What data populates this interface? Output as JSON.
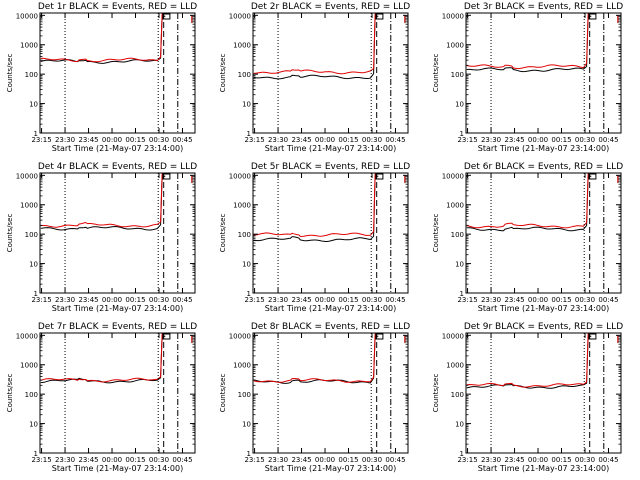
{
  "chart_data": [
    {
      "type": "line",
      "title": "Det 1r BLACK = Events, RED = LLD",
      "xlabel": "Start Time (21-May-07 23:14:00)",
      "ylabel": "Counts/sec",
      "x_ticks": [
        "23:15",
        "23:30",
        "23:45",
        "00:00",
        "00:15",
        "00:30",
        "00:45"
      ],
      "y_ticks": [
        "1",
        "10",
        "100",
        "1000",
        "10000"
      ],
      "ylim": [
        1,
        12000
      ],
      "yscale": "log",
      "series": [
        {
          "name": "BLACK = Events",
          "color": "#000000",
          "base": 270,
          "spike": 9000
        },
        {
          "name": "RED = LLD",
          "color": "#e00000",
          "base": 300,
          "spike": 11000
        }
      ]
    },
    {
      "type": "line",
      "title": "Det 2r BLACK = Events, RED = LLD",
      "xlabel": "Start Time (21-May-07 23:14:00)",
      "ylabel": "Counts/sec",
      "x_ticks": [
        "23:15",
        "23:30",
        "23:45",
        "00:00",
        "00:15",
        "00:30",
        "00:45"
      ],
      "y_ticks": [
        "1",
        "10",
        "100",
        "1000",
        "10000"
      ],
      "ylim": [
        1,
        12000
      ],
      "yscale": "log",
      "series": [
        {
          "name": "BLACK = Events",
          "color": "#000000",
          "base": 80,
          "spike": 9000
        },
        {
          "name": "RED = LLD",
          "color": "#e00000",
          "base": 120,
          "spike": 11000
        }
      ]
    },
    {
      "type": "line",
      "title": "Det 3r BLACK = Events, RED = LLD",
      "xlabel": "Start Time (21-May-07 23:14:00)",
      "ylabel": "Counts/sec",
      "x_ticks": [
        "23:15",
        "23:30",
        "23:45",
        "00:00",
        "00:15",
        "00:30",
        "00:45"
      ],
      "y_ticks": [
        "1",
        "10",
        "100",
        "1000",
        "10000"
      ],
      "ylim": [
        1,
        12000
      ],
      "yscale": "log",
      "series": [
        {
          "name": "BLACK = Events",
          "color": "#000000",
          "base": 140,
          "spike": 9000
        },
        {
          "name": "RED = LLD",
          "color": "#e00000",
          "base": 180,
          "spike": 11000
        }
      ]
    },
    {
      "type": "line",
      "title": "Det 4r BLACK = Events, RED = LLD",
      "xlabel": "Start Time (21-May-07 23:14:00)",
      "ylabel": "Counts/sec",
      "x_ticks": [
        "23:15",
        "23:30",
        "23:45",
        "00:00",
        "00:15",
        "00:30",
        "00:45"
      ],
      "y_ticks": [
        "1",
        "10",
        "100",
        "1000",
        "10000"
      ],
      "ylim": [
        1,
        12000
      ],
      "yscale": "log",
      "series": [
        {
          "name": "BLACK = Events",
          "color": "#000000",
          "base": 160,
          "spike": 9000
        },
        {
          "name": "RED = LLD",
          "color": "#e00000",
          "base": 200,
          "spike": 11000
        }
      ]
    },
    {
      "type": "line",
      "title": "Det 5r BLACK = Events, RED = LLD",
      "xlabel": "Start Time (21-May-07 23:14:00)",
      "ylabel": "Counts/sec",
      "x_ticks": [
        "23:15",
        "23:30",
        "23:45",
        "00:00",
        "00:15",
        "00:30",
        "00:45"
      ],
      "y_ticks": [
        "1",
        "10",
        "100",
        "1000",
        "10000"
      ],
      "ylim": [
        1,
        12000
      ],
      "yscale": "log",
      "series": [
        {
          "name": "BLACK = Events",
          "color": "#000000",
          "base": 65,
          "spike": 9000
        },
        {
          "name": "RED = LLD",
          "color": "#e00000",
          "base": 95,
          "spike": 11000
        }
      ]
    },
    {
      "type": "line",
      "title": "Det 6r BLACK = Events, RED = LLD",
      "xlabel": "Start Time (21-May-07 23:14:00)",
      "ylabel": "Counts/sec",
      "x_ticks": [
        "23:15",
        "23:30",
        "23:45",
        "00:00",
        "00:15",
        "00:30",
        "00:45"
      ],
      "y_ticks": [
        "1",
        "10",
        "100",
        "1000",
        "10000"
      ],
      "ylim": [
        1,
        12000
      ],
      "yscale": "log",
      "series": [
        {
          "name": "BLACK = Events",
          "color": "#000000",
          "base": 150,
          "spike": 9000
        },
        {
          "name": "RED = LLD",
          "color": "#e00000",
          "base": 190,
          "spike": 11000
        }
      ]
    },
    {
      "type": "line",
      "title": "Det 7r BLACK = Events, RED = LLD",
      "xlabel": "Start Time (21-May-07 23:14:00)",
      "ylabel": "Counts/sec",
      "x_ticks": [
        "23:15",
        "23:30",
        "23:45",
        "00:00",
        "00:15",
        "00:30",
        "00:45"
      ],
      "y_ticks": [
        "1",
        "10",
        "100",
        "1000",
        "10000"
      ],
      "ylim": [
        1,
        12000
      ],
      "yscale": "log",
      "series": [
        {
          "name": "BLACK = Events",
          "color": "#000000",
          "base": 280,
          "spike": 9000
        },
        {
          "name": "RED = LLD",
          "color": "#e00000",
          "base": 300,
          "spike": 11000
        }
      ]
    },
    {
      "type": "line",
      "title": "Det 8r BLACK = Events, RED = LLD",
      "xlabel": "Start Time (21-May-07 23:14:00)",
      "ylabel": "Counts/sec",
      "x_ticks": [
        "23:15",
        "23:30",
        "23:45",
        "00:00",
        "00:15",
        "00:30",
        "00:45"
      ],
      "y_ticks": [
        "1",
        "10",
        "100",
        "1000",
        "10000"
      ],
      "ylim": [
        1,
        12000
      ],
      "yscale": "log",
      "series": [
        {
          "name": "BLACK = Events",
          "color": "#000000",
          "base": 270,
          "spike": 9000
        },
        {
          "name": "RED = LLD",
          "color": "#e00000",
          "base": 290,
          "spike": 11000
        }
      ]
    },
    {
      "type": "line",
      "title": "Det 9r BLACK = Events, RED = LLD",
      "xlabel": "Start Time (21-May-07 23:14:00)",
      "ylabel": "Counts/sec",
      "x_ticks": [
        "23:15",
        "23:30",
        "23:45",
        "00:00",
        "00:15",
        "00:30",
        "00:45"
      ],
      "y_ticks": [
        "1",
        "10",
        "100",
        "1000",
        "10000"
      ],
      "ylim": [
        1,
        12000
      ],
      "yscale": "log",
      "series": [
        {
          "name": "BLACK = Events",
          "color": "#000000",
          "base": 180,
          "spike": 9000
        },
        {
          "name": "RED = LLD",
          "color": "#e00000",
          "base": 200,
          "spike": 11000
        }
      ]
    }
  ]
}
